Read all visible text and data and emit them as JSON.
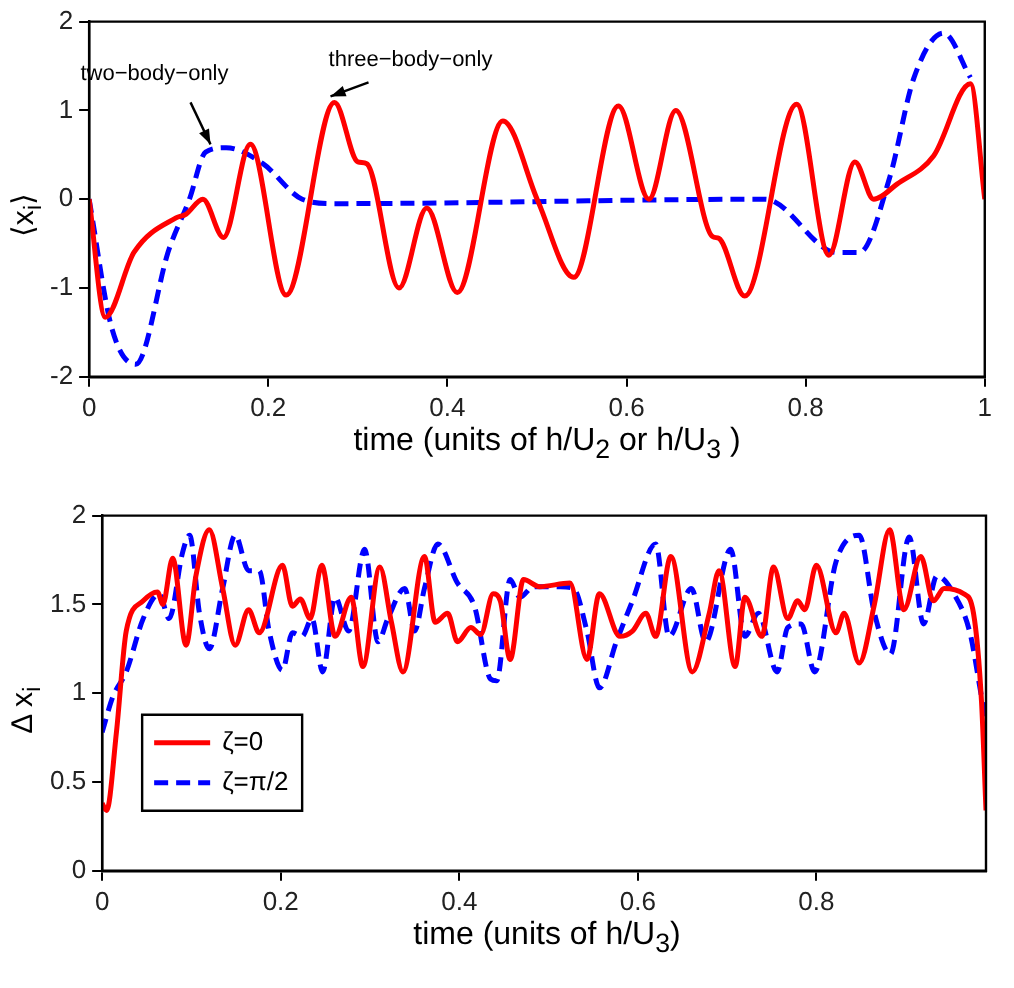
{
  "chart_data": [
    {
      "type": "line",
      "xlabel": "time (units of h/U$_{2}$ or h/U$_{3}$ )",
      "ylabel": "⟨x$_{i}$⟩",
      "xlim": [
        0,
        1
      ],
      "ylim": [
        -2,
        2
      ],
      "xticks": [
        0,
        0.2,
        0.4,
        0.6,
        0.8,
        1
      ],
      "yticks": [
        -2,
        -1,
        0,
        1,
        2
      ],
      "grid": false,
      "legend": false,
      "annotations": [
        {
          "text": "two−body−only",
          "x": 0.14,
          "y": 0.55
        },
        {
          "text": "three−body−only",
          "x": 0.274,
          "y": 1.09
        }
      ],
      "series": [
        {
          "color": "#ff0000",
          "line_style": "solid",
          "x": [
            0,
            0.018,
            0.05,
            0.097,
            0.108,
            0.127,
            0.15,
            0.18,
            0.22,
            0.274,
            0.3,
            0.31,
            0.346,
            0.377,
            0.411,
            0.462,
            0.501,
            0.541,
            0.591,
            0.625,
            0.655,
            0.696,
            0.703,
            0.732,
            0.79,
            0.826,
            0.855,
            0.876,
            0.902,
            0.943,
            0.984,
            1
          ],
          "values": [
            0,
            -1.33,
            -0.6,
            -0.21,
            -0.17,
            0,
            -0.43,
            0.62,
            -1.08,
            1.09,
            0.42,
            0.4,
            -1,
            -0.1,
            -1.05,
            0.88,
            -0.02,
            -0.88,
            1.05,
            0,
            1,
            -0.42,
            -0.44,
            -1.09,
            1.07,
            -0.63,
            0.42,
            0,
            0.17,
            0.49,
            1.3,
            0
          ]
        },
        {
          "color": "#0000ff",
          "line_style": "dashed",
          "x": [
            0,
            0.025,
            0.052,
            0.089,
            0.112,
            0.13,
            0.153,
            0.194,
            0.238,
            0.274,
            0.755,
            0.835,
            0.86,
            0.894,
            0.921,
            0.954,
            0.984
          ],
          "values": [
            0,
            -1.44,
            -1.86,
            -0.57,
            0,
            0.53,
            0.58,
            0.4,
            0,
            -0.05,
            0,
            -0.6,
            -0.6,
            0.25,
            1.37,
            1.87,
            1.37
          ]
        }
      ]
    },
    {
      "type": "line",
      "xlabel": "time (units of h/U$_{3}$)",
      "ylabel": "Δ x$_{i}$",
      "xlim": [
        0,
        0.99
      ],
      "ylim": [
        0,
        2
      ],
      "xticks": [
        0,
        0.2,
        0.4,
        0.6,
        0.8
      ],
      "yticks": [
        0,
        0.5,
        1,
        1.5,
        2
      ],
      "grid": false,
      "legend": "bottom left",
      "series": [
        {
          "name": "ζ=0",
          "color": "#ff0000",
          "line_style": "solid",
          "x": [
            0,
            0.005,
            0.016,
            0.027,
            0.046,
            0.062,
            0.068,
            0.079,
            0.094,
            0.105,
            0.12,
            0.135,
            0.149,
            0.164,
            0.176,
            0.202,
            0.213,
            0.222,
            0.233,
            0.246,
            0.261,
            0.279,
            0.292,
            0.311,
            0.324,
            0.337,
            0.361,
            0.373,
            0.387,
            0.398,
            0.413,
            0.424,
            0.438,
            0.446,
            0.457,
            0.472,
            0.49,
            0.524,
            0.543,
            0.557,
            0.58,
            0.594,
            0.609,
            0.62,
            0.637,
            0.661,
            0.68,
            0.691,
            0.709,
            0.72,
            0.739,
            0.752,
            0.768,
            0.779,
            0.787,
            0.8,
            0.822,
            0.831,
            0.848,
            0.865,
            0.882,
            0.898,
            0.917,
            0.931,
            0.943,
            0.965,
            0.976,
            0.985,
            0.99
          ],
          "values": [
            0.38,
            0.34,
            0.78,
            1.35,
            1.52,
            1.57,
            1.5,
            1.76,
            1.27,
            1.66,
            1.92,
            1.59,
            1.27,
            1.47,
            1.34,
            1.72,
            1.49,
            1.53,
            1.42,
            1.72,
            1.32,
            1.54,
            1.15,
            1.71,
            1.4,
            1.12,
            1.77,
            1.4,
            1.45,
            1.29,
            1.37,
            1.33,
            1.56,
            1.52,
            1.19,
            1.64,
            1.6,
            1.62,
            1.19,
            1.56,
            1.32,
            1.35,
            1.45,
            1.32,
            1.77,
            1.12,
            1.45,
            1.69,
            1.15,
            1.54,
            1.32,
            1.71,
            1.42,
            1.52,
            1.47,
            1.72,
            1.34,
            1.45,
            1.17,
            1.5,
            1.92,
            1.47,
            1.77,
            1.52,
            1.59,
            1.56,
            1.45,
            0.95,
            0.34
          ]
        },
        {
          "name": "ζ=π/2",
          "color": "#0000ff",
          "line_style": "dashed",
          "x": [
            0,
            0.012,
            0.027,
            0.046,
            0.064,
            0.075,
            0.09,
            0.098,
            0.109,
            0.12,
            0.135,
            0.149,
            0.164,
            0.176,
            0.187,
            0.202,
            0.213,
            0.224,
            0.235,
            0.247,
            0.261,
            0.276,
            0.294,
            0.309,
            0.32,
            0.339,
            0.35,
            0.361,
            0.376,
            0.398,
            0.417,
            0.435,
            0.442,
            0.457,
            0.468,
            0.483,
            0.513,
            0.528,
            0.543,
            0.557,
            0.576,
            0.594,
            0.62,
            0.635,
            0.66,
            0.676,
            0.704,
            0.72,
            0.735,
            0.756,
            0.768,
            0.783,
            0.798,
            0.822,
            0.848,
            0.865,
            0.883,
            0.904,
            0.92,
            0.935,
            0.954,
            0.972,
            0.985,
            0.99
          ],
          "values": [
            0.78,
            0.98,
            1.12,
            1.42,
            1.56,
            1.42,
            1.79,
            1.89,
            1.45,
            1.25,
            1.59,
            1.89,
            1.69,
            1.69,
            1.35,
            1.13,
            1.34,
            1.32,
            1.42,
            1.12,
            1.54,
            1.35,
            1.81,
            1.29,
            1.42,
            1.59,
            1.35,
            1.59,
            1.84,
            1.62,
            1.49,
            1.08,
            1.07,
            1.64,
            1.54,
            1.6,
            1.6,
            1.59,
            1.35,
            1.03,
            1.29,
            1.52,
            1.84,
            1.32,
            1.59,
            1.29,
            1.81,
            1.32,
            1.45,
            1.12,
            1.37,
            1.39,
            1.12,
            1.74,
            1.89,
            1.45,
            1.22,
            1.88,
            1.39,
            1.66,
            1.56,
            1.34,
            0.98,
            0.85
          ]
        }
      ]
    }
  ]
}
